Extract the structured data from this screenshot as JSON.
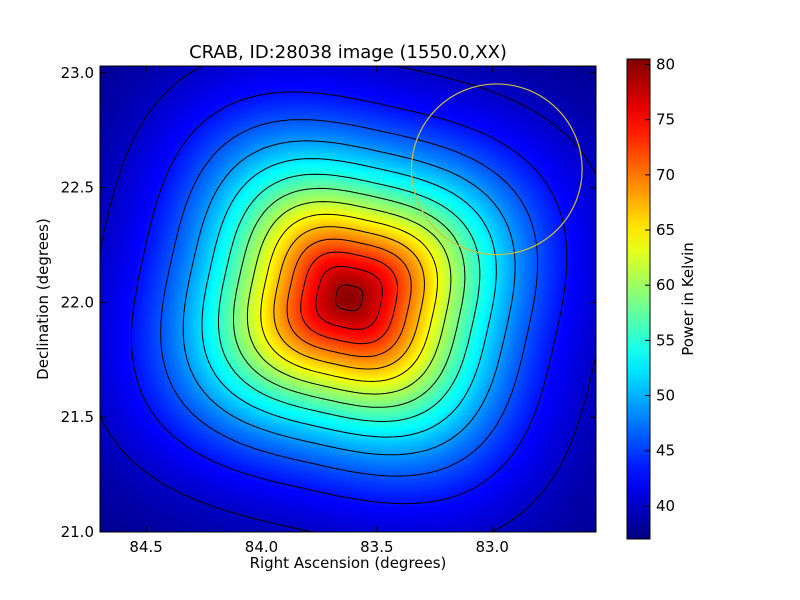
{
  "chart_data": {
    "type": "heatmap",
    "title": "CRAB, ID:28038 image (1550.0,XX)",
    "xlabel": "Right Ascension (degrees)",
    "ylabel": "Declination (degrees)",
    "xlim": [
      84.7,
      82.55
    ],
    "ylim": [
      21.0,
      23.03
    ],
    "x_inverted": true,
    "x_ticks": [
      84.5,
      84.0,
      83.5,
      83.0
    ],
    "x_tick_labels": [
      "84.5",
      "84.0",
      "83.5",
      "83.0"
    ],
    "y_ticks": [
      21.0,
      21.5,
      22.0,
      22.5,
      23.0
    ],
    "y_tick_labels": [
      "21.0",
      "21.5",
      "22.0",
      "22.5",
      "23.0"
    ],
    "colormap": "jet",
    "colorbar": {
      "label": "Power in Kelvin",
      "range": [
        37,
        80.5
      ],
      "ticks": [
        40,
        45,
        50,
        55,
        60,
        65,
        70,
        75,
        80
      ],
      "tick_labels": [
        "40",
        "45",
        "50",
        "55",
        "60",
        "65",
        "70",
        "75",
        "80"
      ]
    },
    "peak": {
      "ra": 83.62,
      "dec": 22.02,
      "value": 80
    },
    "background_value": 37,
    "contour_levels": [
      40,
      43,
      46,
      49,
      52,
      55,
      58,
      61,
      64,
      67,
      70,
      73,
      76,
      79
    ],
    "contour_color": "#000000",
    "beam_circle": {
      "ra": 82.98,
      "dec": 22.58,
      "radius_deg": 0.37,
      "color": "#cdbf3f"
    }
  }
}
